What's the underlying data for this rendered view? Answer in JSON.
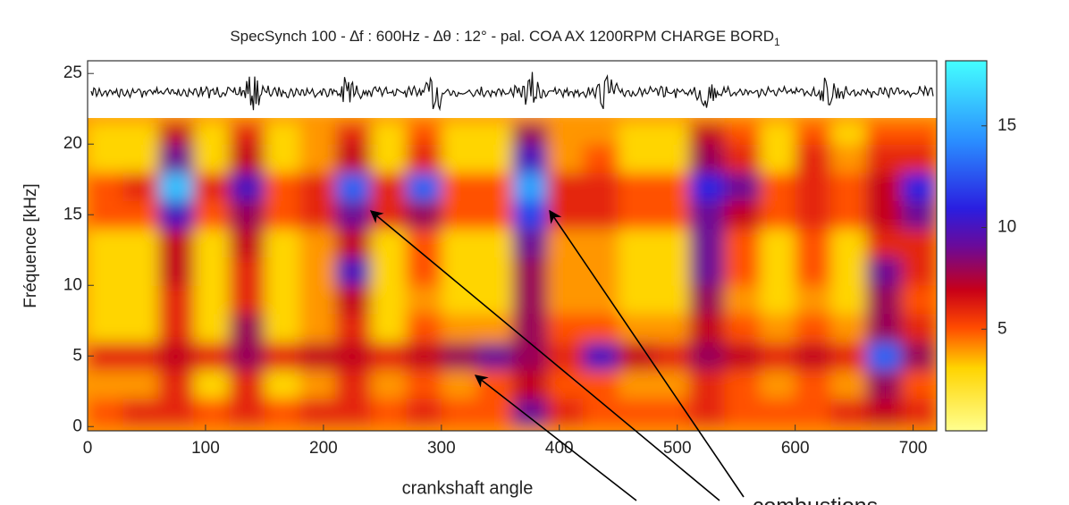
{
  "chart_data": {
    "type": "heatmap",
    "title": "SpecSynch 100 - ∆f : 600Hz - ∆θ : 12° - pal. COA AX 1200RPM CHARGE BORD",
    "title_subscript": "1",
    "y_label": "Fréquence [kHz]",
    "x_annotation": "crankshaft angle",
    "annotation": "combustions",
    "annotation_color": "#e00000",
    "xlim": [
      0,
      720
    ],
    "xticks": [
      0,
      100,
      200,
      300,
      400,
      500,
      600,
      700
    ],
    "ylim": [
      -0.3,
      25.9
    ],
    "yticks": [
      0,
      5,
      10,
      15,
      20,
      25
    ],
    "xbins": [
      0,
      30,
      60,
      90,
      120,
      150,
      180,
      210,
      240,
      270,
      300,
      330,
      360,
      390,
      420,
      450,
      480,
      510,
      540,
      570,
      600,
      630,
      660,
      690,
      720
    ],
    "ybins": [
      0,
      2,
      4,
      6,
      8,
      10,
      12,
      14,
      16,
      18,
      20,
      21.5
    ],
    "values": [
      [
        5,
        6,
        6,
        5,
        6,
        5,
        6,
        6,
        5,
        6,
        5,
        5,
        9,
        6,
        5,
        5,
        5,
        6,
        5,
        5,
        5,
        6,
        7,
        6
      ],
      [
        4,
        4,
        6,
        3,
        6,
        3,
        4,
        6,
        4,
        5,
        4,
        5,
        7,
        5,
        5,
        4,
        4,
        6,
        5,
        4,
        5,
        4,
        8,
        5
      ],
      [
        6,
        6,
        7,
        6,
        8,
        6,
        7,
        7,
        6,
        7,
        8,
        9,
        8,
        6,
        10,
        7,
        6,
        8,
        7,
        6,
        7,
        6,
        13,
        8
      ],
      [
        3,
        3,
        6,
        3,
        8,
        3,
        4,
        6,
        3,
        5,
        4,
        4,
        8,
        5,
        5,
        4,
        4,
        7,
        5,
        4,
        5,
        4,
        8,
        6
      ],
      [
        3,
        3,
        6,
        3,
        6,
        3,
        4,
        7,
        3,
        4,
        3,
        3,
        8,
        4,
        4,
        3,
        3,
        8,
        4,
        3,
        4,
        3,
        8,
        5
      ],
      [
        3,
        3,
        7,
        3,
        6,
        3,
        4,
        10,
        3,
        5,
        3,
        3,
        8,
        4,
        4,
        3,
        3,
        9,
        5,
        3,
        5,
        3,
        9,
        6
      ],
      [
        3,
        3,
        7,
        3,
        7,
        3,
        4,
        7,
        3,
        5,
        3,
        3,
        9,
        4,
        4,
        3,
        3,
        9,
        5,
        3,
        5,
        3,
        6,
        6
      ],
      [
        5,
        5,
        10,
        5,
        8,
        5,
        6,
        9,
        6,
        8,
        5,
        5,
        12,
        6,
        6,
        5,
        5,
        9,
        7,
        5,
        6,
        5,
        7,
        9
      ],
      [
        5,
        6,
        16,
        6,
        10,
        5,
        6,
        13,
        6,
        13,
        5,
        5,
        15,
        6,
        6,
        5,
        5,
        11,
        9,
        5,
        6,
        5,
        7,
        11
      ],
      [
        3,
        3,
        9,
        3,
        7,
        3,
        4,
        7,
        3,
        6,
        3,
        3,
        10,
        4,
        5,
        3,
        3,
        8,
        6,
        3,
        6,
        4,
        6,
        6
      ],
      [
        3,
        3,
        7,
        3,
        6,
        3,
        4,
        6,
        3,
        5,
        3,
        3,
        8,
        4,
        4,
        3,
        3,
        7,
        5,
        3,
        5,
        3,
        5,
        5
      ]
    ],
    "colorbar_lim": [
      0,
      18.2
    ],
    "colorbar_ticks": [
      5,
      10,
      15
    ]
  }
}
